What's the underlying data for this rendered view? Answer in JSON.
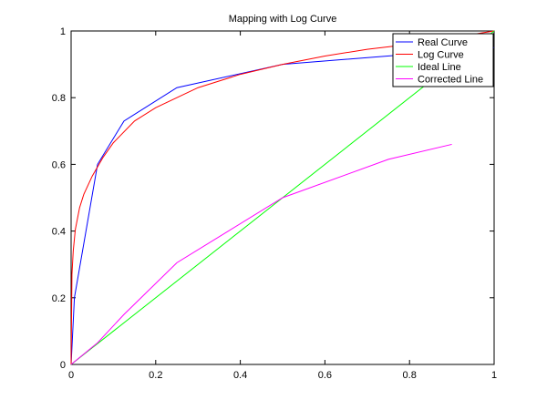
{
  "chart_data": {
    "type": "line",
    "title": "Mapping with Log Curve",
    "xlabel": "",
    "ylabel": "",
    "xlim": [
      0,
      1
    ],
    "ylim": [
      0,
      1
    ],
    "xticks": [
      "0",
      "0.2",
      "0.4",
      "0.6",
      "0.8",
      "1"
    ],
    "yticks": [
      "0",
      "0.2",
      "0.4",
      "0.6",
      "0.8",
      "1"
    ],
    "grid": false,
    "legend_position": "top-right",
    "series": [
      {
        "name": "Real Curve",
        "color": "#0000ff",
        "x": [
          0,
          0.0078,
          0.0625,
          0.125,
          0.25,
          0.5,
          1.0
        ],
        "y": [
          0,
          0.2,
          0.6,
          0.73,
          0.83,
          0.9,
          0.95
        ]
      },
      {
        "name": "Log Curve",
        "color": "#ff0000",
        "x": [
          0,
          0.002,
          0.005,
          0.01,
          0.02,
          0.03,
          0.05,
          0.075,
          0.1,
          0.15,
          0.2,
          0.3,
          0.4,
          0.5,
          0.6,
          0.7,
          0.8,
          0.9,
          1.0
        ],
        "y": [
          0,
          0.27,
          0.34,
          0.405,
          0.47,
          0.51,
          0.565,
          0.62,
          0.665,
          0.73,
          0.77,
          0.83,
          0.87,
          0.9,
          0.925,
          0.945,
          0.96,
          0.98,
          1.0
        ]
      },
      {
        "name": "Ideal Line",
        "color": "#00ff00",
        "x": [
          0,
          1
        ],
        "y": [
          0,
          1
        ]
      },
      {
        "name": "Corrected Line",
        "color": "#ff00ff",
        "x": [
          0,
          0.0625,
          0.125,
          0.25,
          0.5,
          0.75,
          0.9
        ],
        "y": [
          0,
          0.065,
          0.15,
          0.305,
          0.5,
          0.615,
          0.66
        ]
      }
    ]
  }
}
